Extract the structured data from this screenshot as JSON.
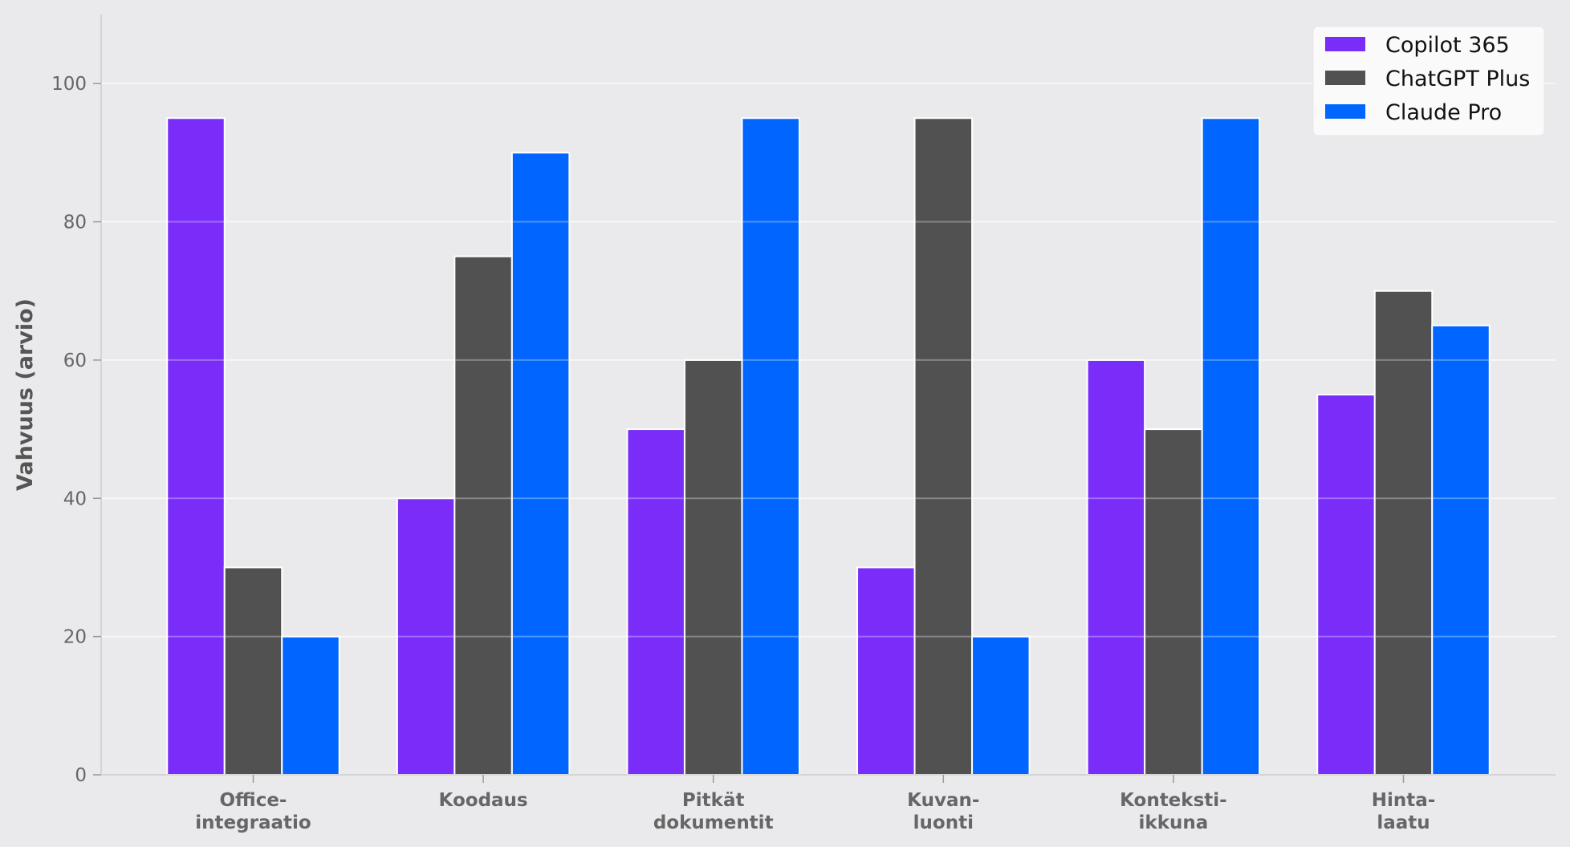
{
  "chart_data": {
    "type": "bar",
    "title": "",
    "xlabel": "",
    "ylabel": "Vahvuus (arvio)",
    "ylim": [
      0,
      110
    ],
    "yticks": [
      0,
      20,
      40,
      60,
      80,
      100
    ],
    "grid": true,
    "legend_position": "top-right",
    "categories": [
      [
        "Office-",
        "integraatio"
      ],
      [
        "Koodaus"
      ],
      [
        "Pitkät",
        "dokumentit"
      ],
      [
        "Kuvan-",
        "luonti"
      ],
      [
        "Konteksti-",
        "ikkuna"
      ],
      [
        "Hinta-",
        "laatu"
      ]
    ],
    "series": [
      {
        "name": "Copilot 365",
        "color": "#7a2cf9",
        "values": [
          95,
          40,
          50,
          30,
          60,
          55
        ]
      },
      {
        "name": "ChatGPT Plus",
        "color": "#515151",
        "values": [
          30,
          75,
          60,
          95,
          50,
          70
        ]
      },
      {
        "name": "Claude Pro",
        "color": "#0066ff",
        "values": [
          20,
          90,
          95,
          20,
          95,
          65
        ]
      }
    ]
  }
}
